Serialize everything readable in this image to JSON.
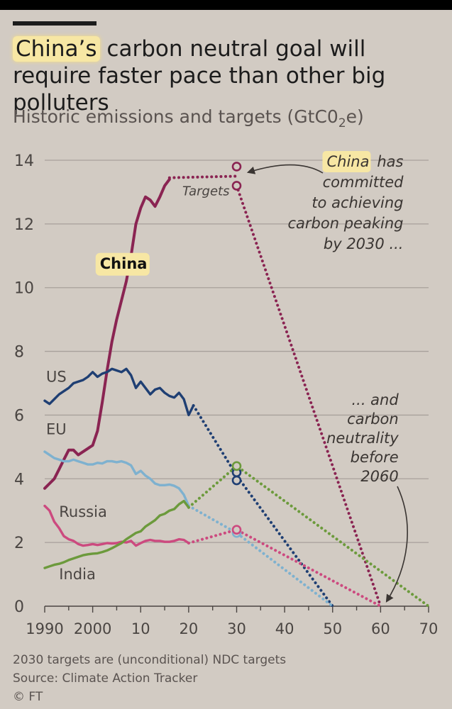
{
  "title": {
    "highlight": "China’s",
    "rest": "carbon neutral goal will require faster pace than other big polluters"
  },
  "subtitle": {
    "pre": "Historic emissions and targets (GtC0",
    "sub": "2",
    "post": "e)"
  },
  "footer": {
    "note": "2030 targets are (unconditional) NDC targets",
    "source": "Source: Climate Action Tracker",
    "credit": "© FT"
  },
  "colors": {
    "background": "#d2cbc3",
    "grid": "#a8a09b",
    "axis": "#4a4542",
    "china": "#8a2452",
    "us": "#1f3f73",
    "eu": "#7eb1cf",
    "russia": "#cc4a7f",
    "india": "#6c9a3c",
    "highlight": "#f7e7a4"
  },
  "chart_data": {
    "type": "line",
    "title": "China’s carbon neutral goal will require faster pace than other big polluters",
    "ylabel": "Historic emissions and targets (GtC02e)",
    "xlim": [
      1990,
      2070
    ],
    "ylim": [
      0,
      14
    ],
    "x_ticks": [
      1990,
      2000,
      2010,
      2020,
      2030,
      2040,
      2050,
      2060,
      2070
    ],
    "x_tick_labels": [
      "1990",
      "2000",
      "10",
      "20",
      "30",
      "40",
      "50",
      "60",
      "70"
    ],
    "y_ticks": [
      0,
      2,
      4,
      6,
      8,
      10,
      12,
      14
    ],
    "y_tick_labels": [
      "0",
      "2",
      "4",
      "6",
      "8",
      "10",
      "12",
      "14"
    ],
    "grid": true,
    "series": [
      {
        "name": "China",
        "key": "china",
        "highlighted": true,
        "history": [
          [
            1990,
            3.7
          ],
          [
            1991,
            3.85
          ],
          [
            1992,
            4.0
          ],
          [
            1993,
            4.3
          ],
          [
            1994,
            4.6
          ],
          [
            1995,
            4.9
          ],
          [
            1996,
            4.9
          ],
          [
            1997,
            4.75
          ],
          [
            1998,
            4.85
          ],
          [
            1999,
            4.95
          ],
          [
            2000,
            5.05
          ],
          [
            2001,
            5.5
          ],
          [
            2002,
            6.4
          ],
          [
            2003,
            7.4
          ],
          [
            2004,
            8.3
          ],
          [
            2005,
            9.0
          ],
          [
            2006,
            9.6
          ],
          [
            2007,
            10.2
          ],
          [
            2008,
            11.0
          ],
          [
            2009,
            12.0
          ],
          [
            2010,
            12.5
          ],
          [
            2011,
            12.85
          ],
          [
            2012,
            12.75
          ],
          [
            2013,
            12.55
          ],
          [
            2014,
            12.85
          ],
          [
            2015,
            13.2
          ],
          [
            2016,
            13.4
          ]
        ],
        "target_dotted": [
          [
            2016,
            13.45
          ],
          [
            2030,
            13.5
          ]
        ],
        "target_points": [
          [
            2030,
            13.8
          ],
          [
            2030,
            13.2
          ]
        ],
        "projection_dotted": [
          [
            2030,
            13.2
          ],
          [
            2060,
            0
          ]
        ]
      },
      {
        "name": "US",
        "key": "us",
        "history": [
          [
            1990,
            6.45
          ],
          [
            1991,
            6.35
          ],
          [
            1992,
            6.5
          ],
          [
            1993,
            6.65
          ],
          [
            1994,
            6.75
          ],
          [
            1995,
            6.85
          ],
          [
            1996,
            7.0
          ],
          [
            1997,
            7.05
          ],
          [
            1998,
            7.1
          ],
          [
            1999,
            7.2
          ],
          [
            2000,
            7.35
          ],
          [
            2001,
            7.2
          ],
          [
            2002,
            7.3
          ],
          [
            2003,
            7.35
          ],
          [
            2004,
            7.45
          ],
          [
            2005,
            7.4
          ],
          [
            2006,
            7.35
          ],
          [
            2007,
            7.45
          ],
          [
            2008,
            7.25
          ],
          [
            2009,
            6.85
          ],
          [
            2010,
            7.05
          ],
          [
            2011,
            6.85
          ],
          [
            2012,
            6.65
          ],
          [
            2013,
            6.8
          ],
          [
            2014,
            6.85
          ],
          [
            2015,
            6.7
          ],
          [
            2016,
            6.6
          ],
          [
            2017,
            6.55
          ],
          [
            2018,
            6.7
          ],
          [
            2019,
            6.5
          ],
          [
            2020,
            6.0
          ],
          [
            2021,
            6.3
          ]
        ],
        "target_points": [
          [
            2030,
            4.2
          ],
          [
            2030,
            3.95
          ]
        ],
        "projection_dotted": [
          [
            2021,
            6.3
          ],
          [
            2030,
            4.1
          ],
          [
            2050,
            0
          ]
        ]
      },
      {
        "name": "EU",
        "key": "eu",
        "history": [
          [
            1990,
            4.85
          ],
          [
            1991,
            4.75
          ],
          [
            1992,
            4.65
          ],
          [
            1993,
            4.6
          ],
          [
            1994,
            4.55
          ],
          [
            1995,
            4.55
          ],
          [
            1996,
            4.6
          ],
          [
            1997,
            4.55
          ],
          [
            1998,
            4.5
          ],
          [
            1999,
            4.45
          ],
          [
            2000,
            4.45
          ],
          [
            2001,
            4.5
          ],
          [
            2002,
            4.48
          ],
          [
            2003,
            4.55
          ],
          [
            2004,
            4.55
          ],
          [
            2005,
            4.52
          ],
          [
            2006,
            4.55
          ],
          [
            2007,
            4.5
          ],
          [
            2008,
            4.42
          ],
          [
            2009,
            4.15
          ],
          [
            2010,
            4.25
          ],
          [
            2011,
            4.1
          ],
          [
            2012,
            4.0
          ],
          [
            2013,
            3.85
          ],
          [
            2014,
            3.8
          ],
          [
            2015,
            3.8
          ],
          [
            2016,
            3.82
          ],
          [
            2017,
            3.78
          ],
          [
            2018,
            3.7
          ],
          [
            2019,
            3.5
          ],
          [
            2020,
            3.15
          ]
        ],
        "target_points": [
          [
            2030,
            2.3
          ]
        ],
        "projection_dotted": [
          [
            2020,
            3.15
          ],
          [
            2030,
            2.3
          ],
          [
            2050,
            0
          ]
        ]
      },
      {
        "name": "Russia",
        "key": "russia",
        "history": [
          [
            1990,
            3.15
          ],
          [
            1991,
            3.0
          ],
          [
            1992,
            2.65
          ],
          [
            1993,
            2.45
          ],
          [
            1994,
            2.2
          ],
          [
            1995,
            2.1
          ],
          [
            1996,
            2.05
          ],
          [
            1997,
            1.95
          ],
          [
            1998,
            1.9
          ],
          [
            1999,
            1.92
          ],
          [
            2000,
            1.95
          ],
          [
            2001,
            1.92
          ],
          [
            2002,
            1.95
          ],
          [
            2003,
            1.98
          ],
          [
            2004,
            1.97
          ],
          [
            2005,
            1.98
          ],
          [
            2006,
            2.02
          ],
          [
            2007,
            2.0
          ],
          [
            2008,
            2.05
          ],
          [
            2009,
            1.9
          ],
          [
            2010,
            1.98
          ],
          [
            2011,
            2.05
          ],
          [
            2012,
            2.08
          ],
          [
            2013,
            2.05
          ],
          [
            2014,
            2.05
          ],
          [
            2015,
            2.02
          ],
          [
            2016,
            2.02
          ],
          [
            2017,
            2.05
          ],
          [
            2018,
            2.1
          ],
          [
            2019,
            2.08
          ],
          [
            2020,
            1.98
          ]
        ],
        "target_points": [
          [
            2030,
            2.4
          ]
        ],
        "projection_dotted": [
          [
            2020,
            1.98
          ],
          [
            2030,
            2.4
          ],
          [
            2060,
            0
          ]
        ]
      },
      {
        "name": "India",
        "key": "india",
        "history": [
          [
            1990,
            1.2
          ],
          [
            1991,
            1.25
          ],
          [
            1992,
            1.3
          ],
          [
            1993,
            1.33
          ],
          [
            1994,
            1.38
          ],
          [
            1995,
            1.45
          ],
          [
            1996,
            1.5
          ],
          [
            1997,
            1.55
          ],
          [
            1998,
            1.6
          ],
          [
            1999,
            1.63
          ],
          [
            2000,
            1.65
          ],
          [
            2001,
            1.66
          ],
          [
            2002,
            1.7
          ],
          [
            2003,
            1.75
          ],
          [
            2004,
            1.82
          ],
          [
            2005,
            1.9
          ],
          [
            2006,
            1.98
          ],
          [
            2007,
            2.1
          ],
          [
            2008,
            2.2
          ],
          [
            2009,
            2.3
          ],
          [
            2010,
            2.35
          ],
          [
            2011,
            2.5
          ],
          [
            2012,
            2.6
          ],
          [
            2013,
            2.7
          ],
          [
            2014,
            2.85
          ],
          [
            2015,
            2.9
          ],
          [
            2016,
            3.0
          ],
          [
            2017,
            3.05
          ],
          [
            2018,
            3.2
          ],
          [
            2019,
            3.3
          ],
          [
            2020,
            3.1
          ]
        ],
        "target_points": [
          [
            2030,
            4.4
          ]
        ],
        "projection_dotted": [
          [
            2020,
            3.1
          ],
          [
            2030,
            4.4
          ],
          [
            2070,
            0
          ]
        ]
      }
    ],
    "series_labels": [
      {
        "key": "china",
        "text": "China",
        "x": 2001.5,
        "y": 10.6,
        "highlight": true
      },
      {
        "key": "us",
        "text": "US",
        "x": 1990.3,
        "y": 7.05
      },
      {
        "key": "eu",
        "text": "EU",
        "x": 1990.3,
        "y": 5.4
      },
      {
        "key": "russia",
        "text": "Russia",
        "x": 1993.0,
        "y": 2.8
      },
      {
        "key": "india",
        "text": "India",
        "x": 1993.0,
        "y": 0.85
      }
    ],
    "annotations": [
      {
        "name": "targets-label",
        "text": [
          "Targets"
        ],
        "x": 2030,
        "y": 12.9,
        "align": "end"
      },
      {
        "name": "china-peaking-note",
        "highlight": "China",
        "lines": [
          "has",
          "committed",
          "to achieving",
          "carbon peaking",
          "by 2030 ..."
        ],
        "x": 2068,
        "y": 14.0,
        "align": "end"
      },
      {
        "name": "neutrality-note",
        "lines": [
          "... and",
          "carbon",
          "neutrality",
          "before",
          "2060"
        ],
        "x": 2067,
        "y": 6.7,
        "align": "end"
      }
    ]
  }
}
